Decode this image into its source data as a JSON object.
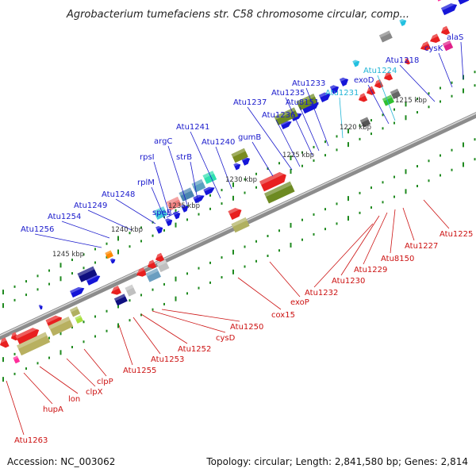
{
  "title": "Agrobacterium tumefaciens str. C58 chromosome circular, comp...",
  "footer": {
    "accession": "Accession: NC_003062",
    "stats": "Topology: circular; Length: 2,841,580 bp; Genes: 2,814"
  },
  "colors": {
    "axis": "#8c8c8c",
    "top_labels": "#1a1acc",
    "bottom_labels": "#cc1111",
    "cyan_labels": "#22b5d6",
    "tick": "#1f8a1f"
  },
  "scale_labels": [
    "1245 kbp",
    "1240 kbp",
    "1235 kbp",
    "1230 kbp",
    "1225 kbp",
    "1220 kbp",
    "1215 kbp"
  ],
  "gene_labels_top": [
    "Atu1256",
    "Atu1254",
    "Atu1249",
    "Atu1248",
    "rplM",
    "rpsI",
    "speB",
    "argC",
    "strB",
    "Atu1241",
    "Atu1240",
    "gumB",
    "Atu1237",
    "Atu1236",
    "Atu1235",
    "Atu8151",
    "Atu1233",
    "Atu1231",
    "exoD",
    "Atu1224",
    "Atu1218",
    "cysK",
    "alaS"
  ],
  "gene_labels_bottom": [
    "Atu1263",
    "hupA",
    "lon",
    "clpX",
    "clpP",
    "Atu1255",
    "Atu1253",
    "Atu1252",
    "cysD",
    "Atu1250",
    "cox15",
    "exoP",
    "Atu1232",
    "Atu1230",
    "Atu1229",
    "Atu8150",
    "Atu1227",
    "Atu1225"
  ]
}
